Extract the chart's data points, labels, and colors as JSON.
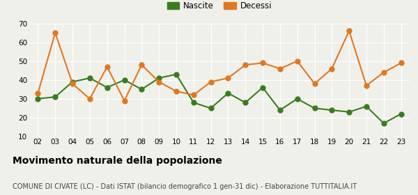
{
  "years": [
    "02",
    "03",
    "04",
    "05",
    "06",
    "07",
    "08",
    "09",
    "10",
    "11",
    "12",
    "13",
    "14",
    "15",
    "16",
    "17",
    "18",
    "19",
    "20",
    "21",
    "22",
    "23"
  ],
  "nascite": [
    30,
    31,
    39,
    41,
    36,
    40,
    35,
    41,
    43,
    28,
    25,
    33,
    28,
    36,
    24,
    30,
    25,
    24,
    23,
    26,
    17,
    22
  ],
  "decessi": [
    33,
    65,
    38,
    30,
    47,
    29,
    48,
    39,
    34,
    32,
    39,
    41,
    48,
    49,
    46,
    50,
    38,
    46,
    66,
    37,
    44,
    49
  ],
  "nascite_color": "#3a7d1e",
  "decessi_color": "#e07820",
  "background_color": "#f0f0eb",
  "grid_color": "#ffffff",
  "ylim": [
    10,
    70
  ],
  "yticks": [
    10,
    20,
    30,
    40,
    50,
    60,
    70
  ],
  "title": "Movimento naturale della popolazione",
  "subtitle": "COMUNE DI CIVATE (LC) - Dati ISTAT (bilancio demografico 1 gen-31 dic) - Elaborazione TUTTITALIA.IT",
  "legend_nascite": "Nascite",
  "legend_decessi": "Decessi",
  "title_fontsize": 10,
  "subtitle_fontsize": 7,
  "tick_fontsize": 7.5,
  "legend_fontsize": 8.5,
  "linewidth": 1.5,
  "markersize": 5
}
